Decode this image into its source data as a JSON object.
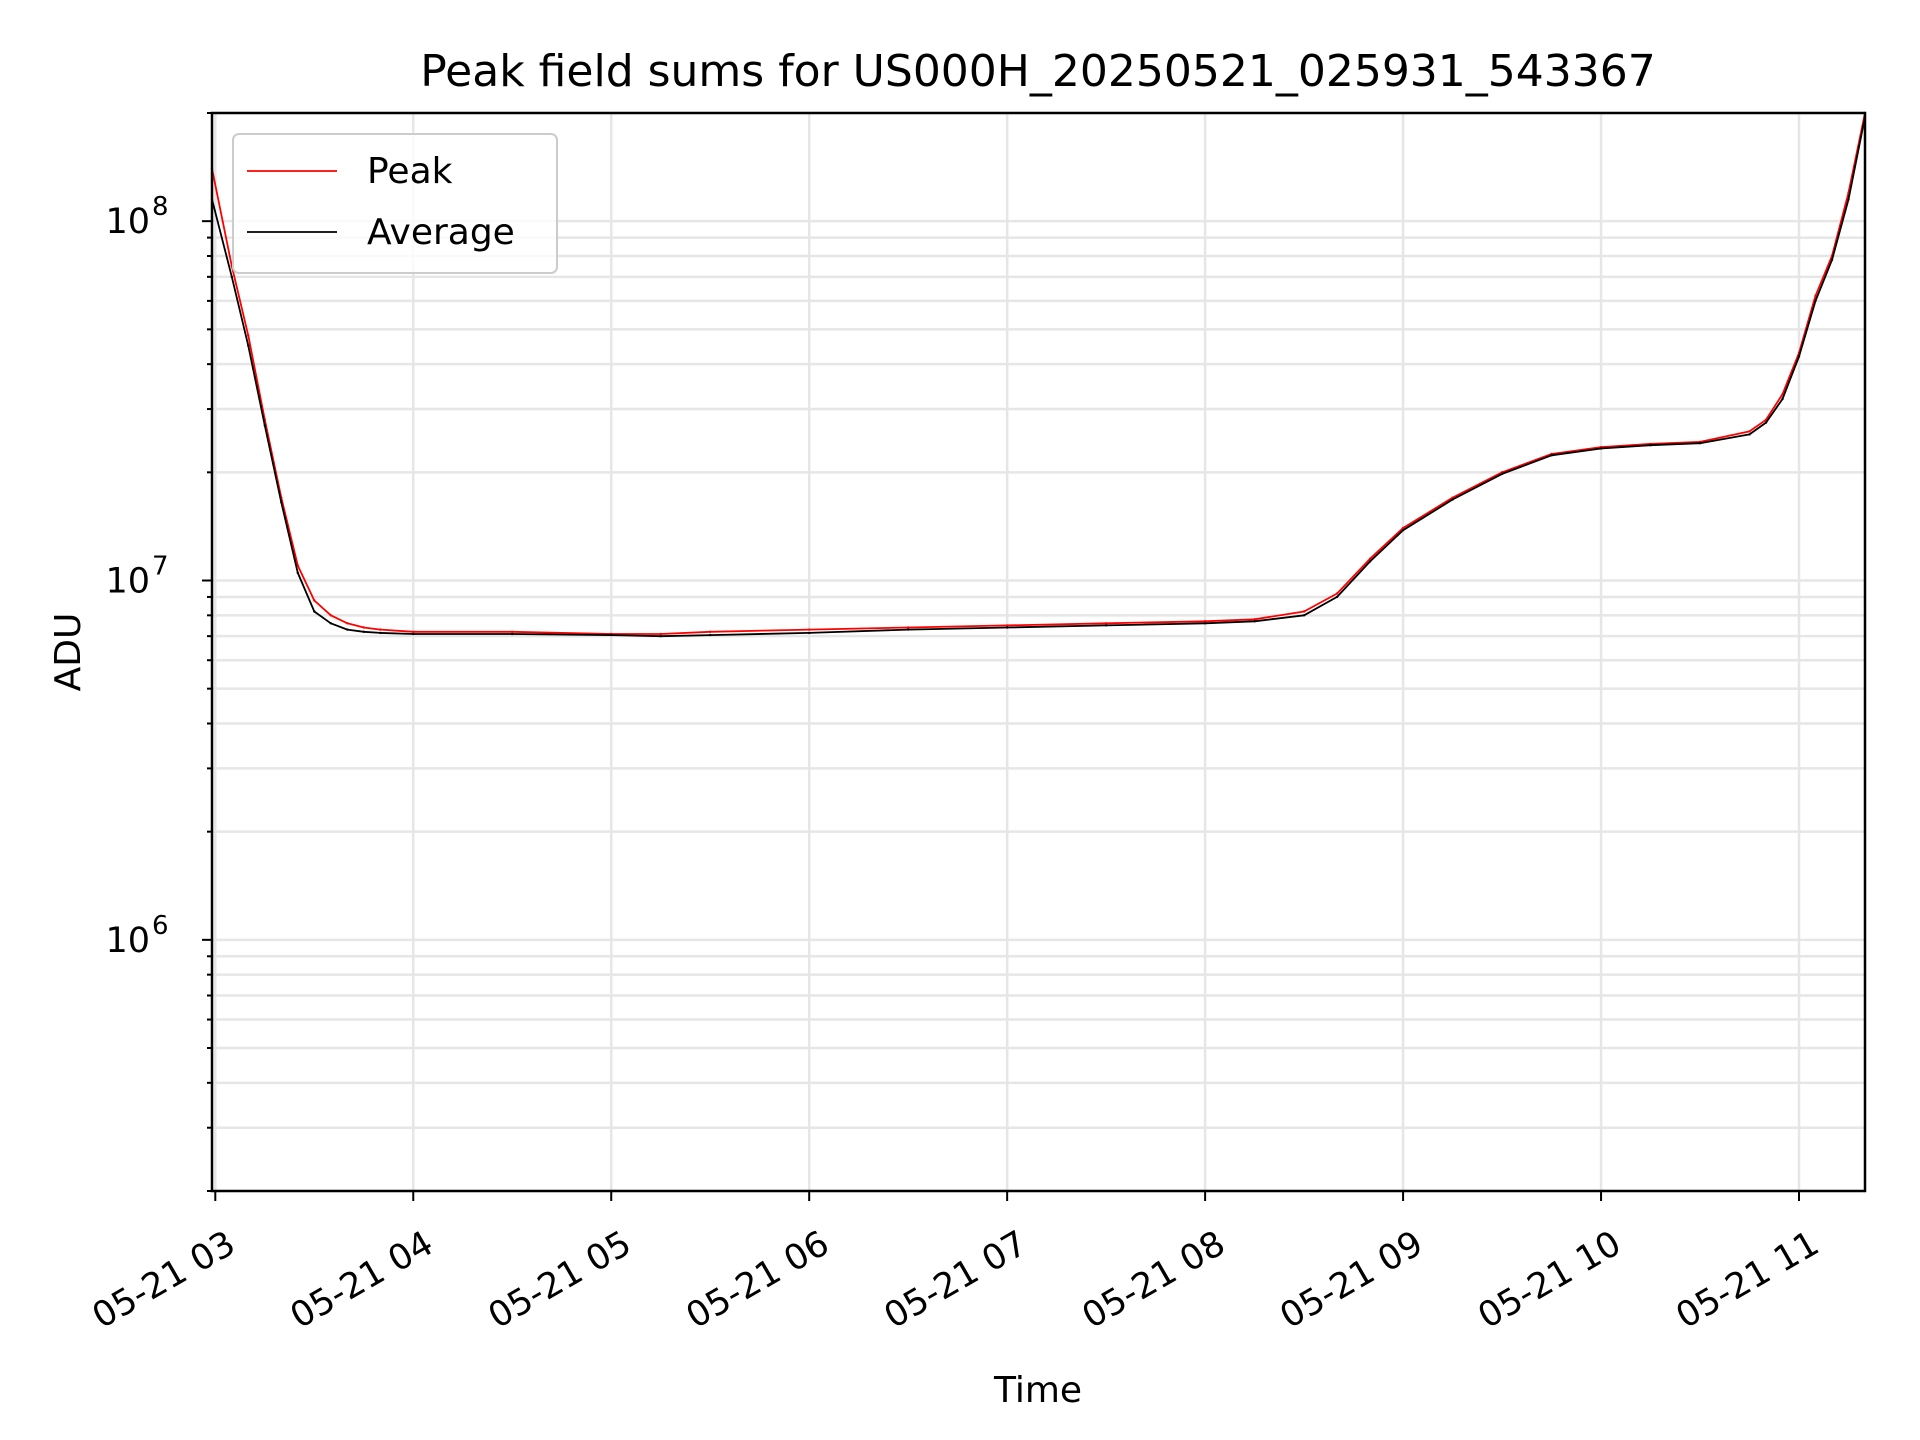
{
  "chart_data": {
    "type": "line",
    "title": "Peak field sums for US000H_20250521_025931_543367",
    "xlabel": "Time",
    "ylabel": "ADU",
    "yscale": "log",
    "ylim": [
      200000,
      200000000
    ],
    "xlim": [
      "2025-05-21 02:59",
      "2025-05-21 11:20"
    ],
    "xticks": [
      {
        "value": "2025-05-21 03:00",
        "label": "05-21 03"
      },
      {
        "value": "2025-05-21 04:00",
        "label": "05-21 04"
      },
      {
        "value": "2025-05-21 05:00",
        "label": "05-21 05"
      },
      {
        "value": "2025-05-21 06:00",
        "label": "05-21 06"
      },
      {
        "value": "2025-05-21 07:00",
        "label": "05-21 07"
      },
      {
        "value": "2025-05-21 08:00",
        "label": "05-21 08"
      },
      {
        "value": "2025-05-21 09:00",
        "label": "05-21 09"
      },
      {
        "value": "2025-05-21 10:00",
        "label": "05-21 10"
      },
      {
        "value": "2025-05-21 11:00",
        "label": "05-21 11"
      }
    ],
    "yticks": [
      {
        "value": 1000000,
        "base": "10",
        "exp": "6"
      },
      {
        "value": 10000000,
        "base": "10",
        "exp": "7"
      },
      {
        "value": 100000000,
        "base": "10",
        "exp": "8"
      }
    ],
    "grid": true,
    "legend_position": "top-left",
    "series": [
      {
        "name": "Peak",
        "color": "#ff0000",
        "x": [
          "2025-05-21 02:59",
          "2025-05-21 03:05",
          "2025-05-21 03:10",
          "2025-05-21 03:15",
          "2025-05-21 03:20",
          "2025-05-21 03:25",
          "2025-05-21 03:30",
          "2025-05-21 03:35",
          "2025-05-21 03:40",
          "2025-05-21 03:45",
          "2025-05-21 03:50",
          "2025-05-21 04:00",
          "2025-05-21 04:30",
          "2025-05-21 05:00",
          "2025-05-21 05:15",
          "2025-05-21 05:30",
          "2025-05-21 06:00",
          "2025-05-21 06:30",
          "2025-05-21 07:00",
          "2025-05-21 07:30",
          "2025-05-21 08:00",
          "2025-05-21 08:15",
          "2025-05-21 08:30",
          "2025-05-21 08:40",
          "2025-05-21 08:50",
          "2025-05-21 09:00",
          "2025-05-21 09:15",
          "2025-05-21 09:30",
          "2025-05-21 09:45",
          "2025-05-21 10:00",
          "2025-05-21 10:15",
          "2025-05-21 10:30",
          "2025-05-21 10:45",
          "2025-05-21 10:50",
          "2025-05-21 10:55",
          "2025-05-21 11:00",
          "2025-05-21 11:05",
          "2025-05-21 11:10",
          "2025-05-21 11:15",
          "2025-05-21 11:20"
        ],
        "y": [
          140000000,
          75000000,
          48000000,
          28000000,
          17000000,
          11000000,
          8800000,
          8000000,
          7600000,
          7400000,
          7300000,
          7200000,
          7200000,
          7100000,
          7100000,
          7200000,
          7300000,
          7400000,
          7500000,
          7600000,
          7700000,
          7800000,
          8200000,
          9200000,
          11500000,
          14000000,
          17000000,
          20000000,
          22500000,
          23500000,
          24000000,
          24300000,
          26000000,
          28000000,
          33000000,
          43000000,
          62000000,
          80000000,
          120000000,
          200000000
        ]
      },
      {
        "name": "Average",
        "color": "#000000",
        "x": [
          "2025-05-21 02:59",
          "2025-05-21 03:05",
          "2025-05-21 03:10",
          "2025-05-21 03:15",
          "2025-05-21 03:20",
          "2025-05-21 03:25",
          "2025-05-21 03:30",
          "2025-05-21 03:35",
          "2025-05-21 03:40",
          "2025-05-21 03:45",
          "2025-05-21 03:50",
          "2025-05-21 04:00",
          "2025-05-21 04:30",
          "2025-05-21 05:00",
          "2025-05-21 05:15",
          "2025-05-21 05:30",
          "2025-05-21 06:00",
          "2025-05-21 06:30",
          "2025-05-21 07:00",
          "2025-05-21 07:30",
          "2025-05-21 08:00",
          "2025-05-21 08:15",
          "2025-05-21 08:30",
          "2025-05-21 08:40",
          "2025-05-21 08:50",
          "2025-05-21 09:00",
          "2025-05-21 09:15",
          "2025-05-21 09:30",
          "2025-05-21 09:45",
          "2025-05-21 10:00",
          "2025-05-21 10:15",
          "2025-05-21 10:30",
          "2025-05-21 10:45",
          "2025-05-21 10:50",
          "2025-05-21 10:55",
          "2025-05-21 11:00",
          "2025-05-21 11:05",
          "2025-05-21 11:10",
          "2025-05-21 11:15",
          "2025-05-21 11:20"
        ],
        "y": [
          115000000,
          70000000,
          45000000,
          27000000,
          16500000,
          10500000,
          8200000,
          7600000,
          7300000,
          7200000,
          7150000,
          7100000,
          7100000,
          7050000,
          7000000,
          7050000,
          7150000,
          7300000,
          7400000,
          7500000,
          7600000,
          7700000,
          8000000,
          9000000,
          11300000,
          13800000,
          16800000,
          19800000,
          22300000,
          23300000,
          23800000,
          24100000,
          25500000,
          27500000,
          32000000,
          42000000,
          60000000,
          78000000,
          115000000,
          195000000
        ]
      }
    ]
  }
}
